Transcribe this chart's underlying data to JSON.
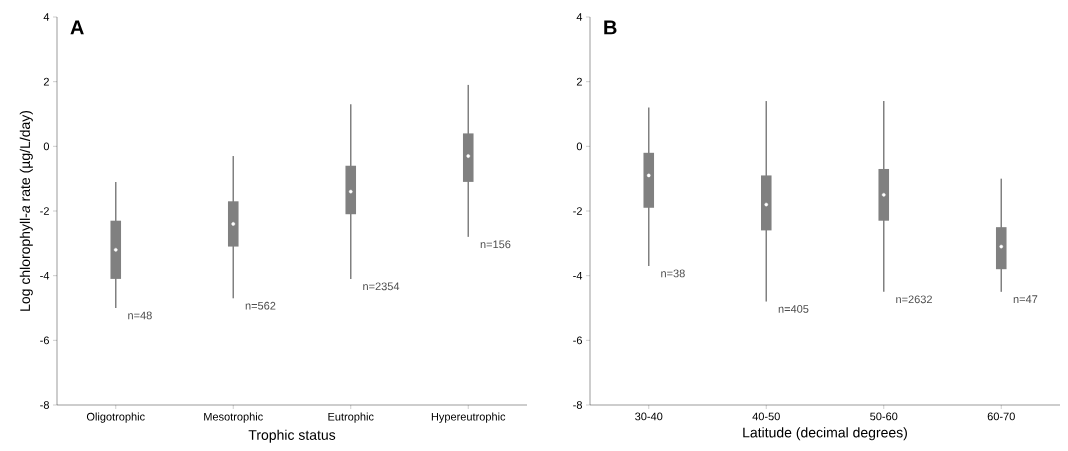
{
  "chart_data": [
    {
      "type": "box",
      "title": "A",
      "xlabel": "Trophic status",
      "ylabel": "Log chlorophyll-*a* rate (µg/L/day)",
      "categories": [
        "Oligotrophic",
        "Mesotrophic",
        "Eutrophic",
        "Hypereutrophic"
      ],
      "ylim": [
        -8,
        4
      ],
      "yticks": [
        -8,
        -6,
        -4,
        -2,
        0,
        2,
        4
      ],
      "grid": false,
      "series": [
        {
          "color": "#808080",
          "boxes": [
            {
              "low": -5.0,
              "q1": -4.1,
              "median": -3.2,
              "q3": -2.3,
              "high": -1.1
            },
            {
              "low": -4.7,
              "q1": -3.1,
              "median": -2.4,
              "q3": -1.7,
              "high": -0.3
            },
            {
              "low": -4.1,
              "q1": -2.1,
              "median": -1.4,
              "q3": -0.6,
              "high": 1.3
            },
            {
              "low": -2.8,
              "q1": -1.1,
              "median": -0.3,
              "q3": 0.4,
              "high": 1.9
            }
          ]
        }
      ],
      "annotations": [
        "n=48",
        "n=562",
        "n=2354",
        "n=156"
      ]
    },
    {
      "type": "box",
      "title": "B",
      "xlabel": "Latitude (decimal degrees)",
      "categories": [
        "30-40",
        "40-50",
        "50-60",
        "60-70"
      ],
      "ylim": [
        -8,
        4
      ],
      "yticks": [
        -8,
        -6,
        -4,
        -2,
        0,
        2,
        4
      ],
      "grid": false,
      "series": [
        {
          "color": "#808080",
          "boxes": [
            {
              "low": -3.7,
              "q1": -1.9,
              "median": -0.9,
              "q3": -0.2,
              "high": 1.2
            },
            {
              "low": -4.8,
              "q1": -2.6,
              "median": -1.8,
              "q3": -0.9,
              "high": 1.4
            },
            {
              "low": -4.5,
              "q1": -2.3,
              "median": -1.5,
              "q3": -0.7,
              "high": 1.4
            },
            {
              "low": -4.5,
              "q1": -3.8,
              "median": -3.1,
              "q3": -2.5,
              "high": -1.0
            }
          ]
        }
      ],
      "annotations": [
        "n=38",
        "n=405",
        "n=2632",
        "n=47"
      ]
    }
  ]
}
